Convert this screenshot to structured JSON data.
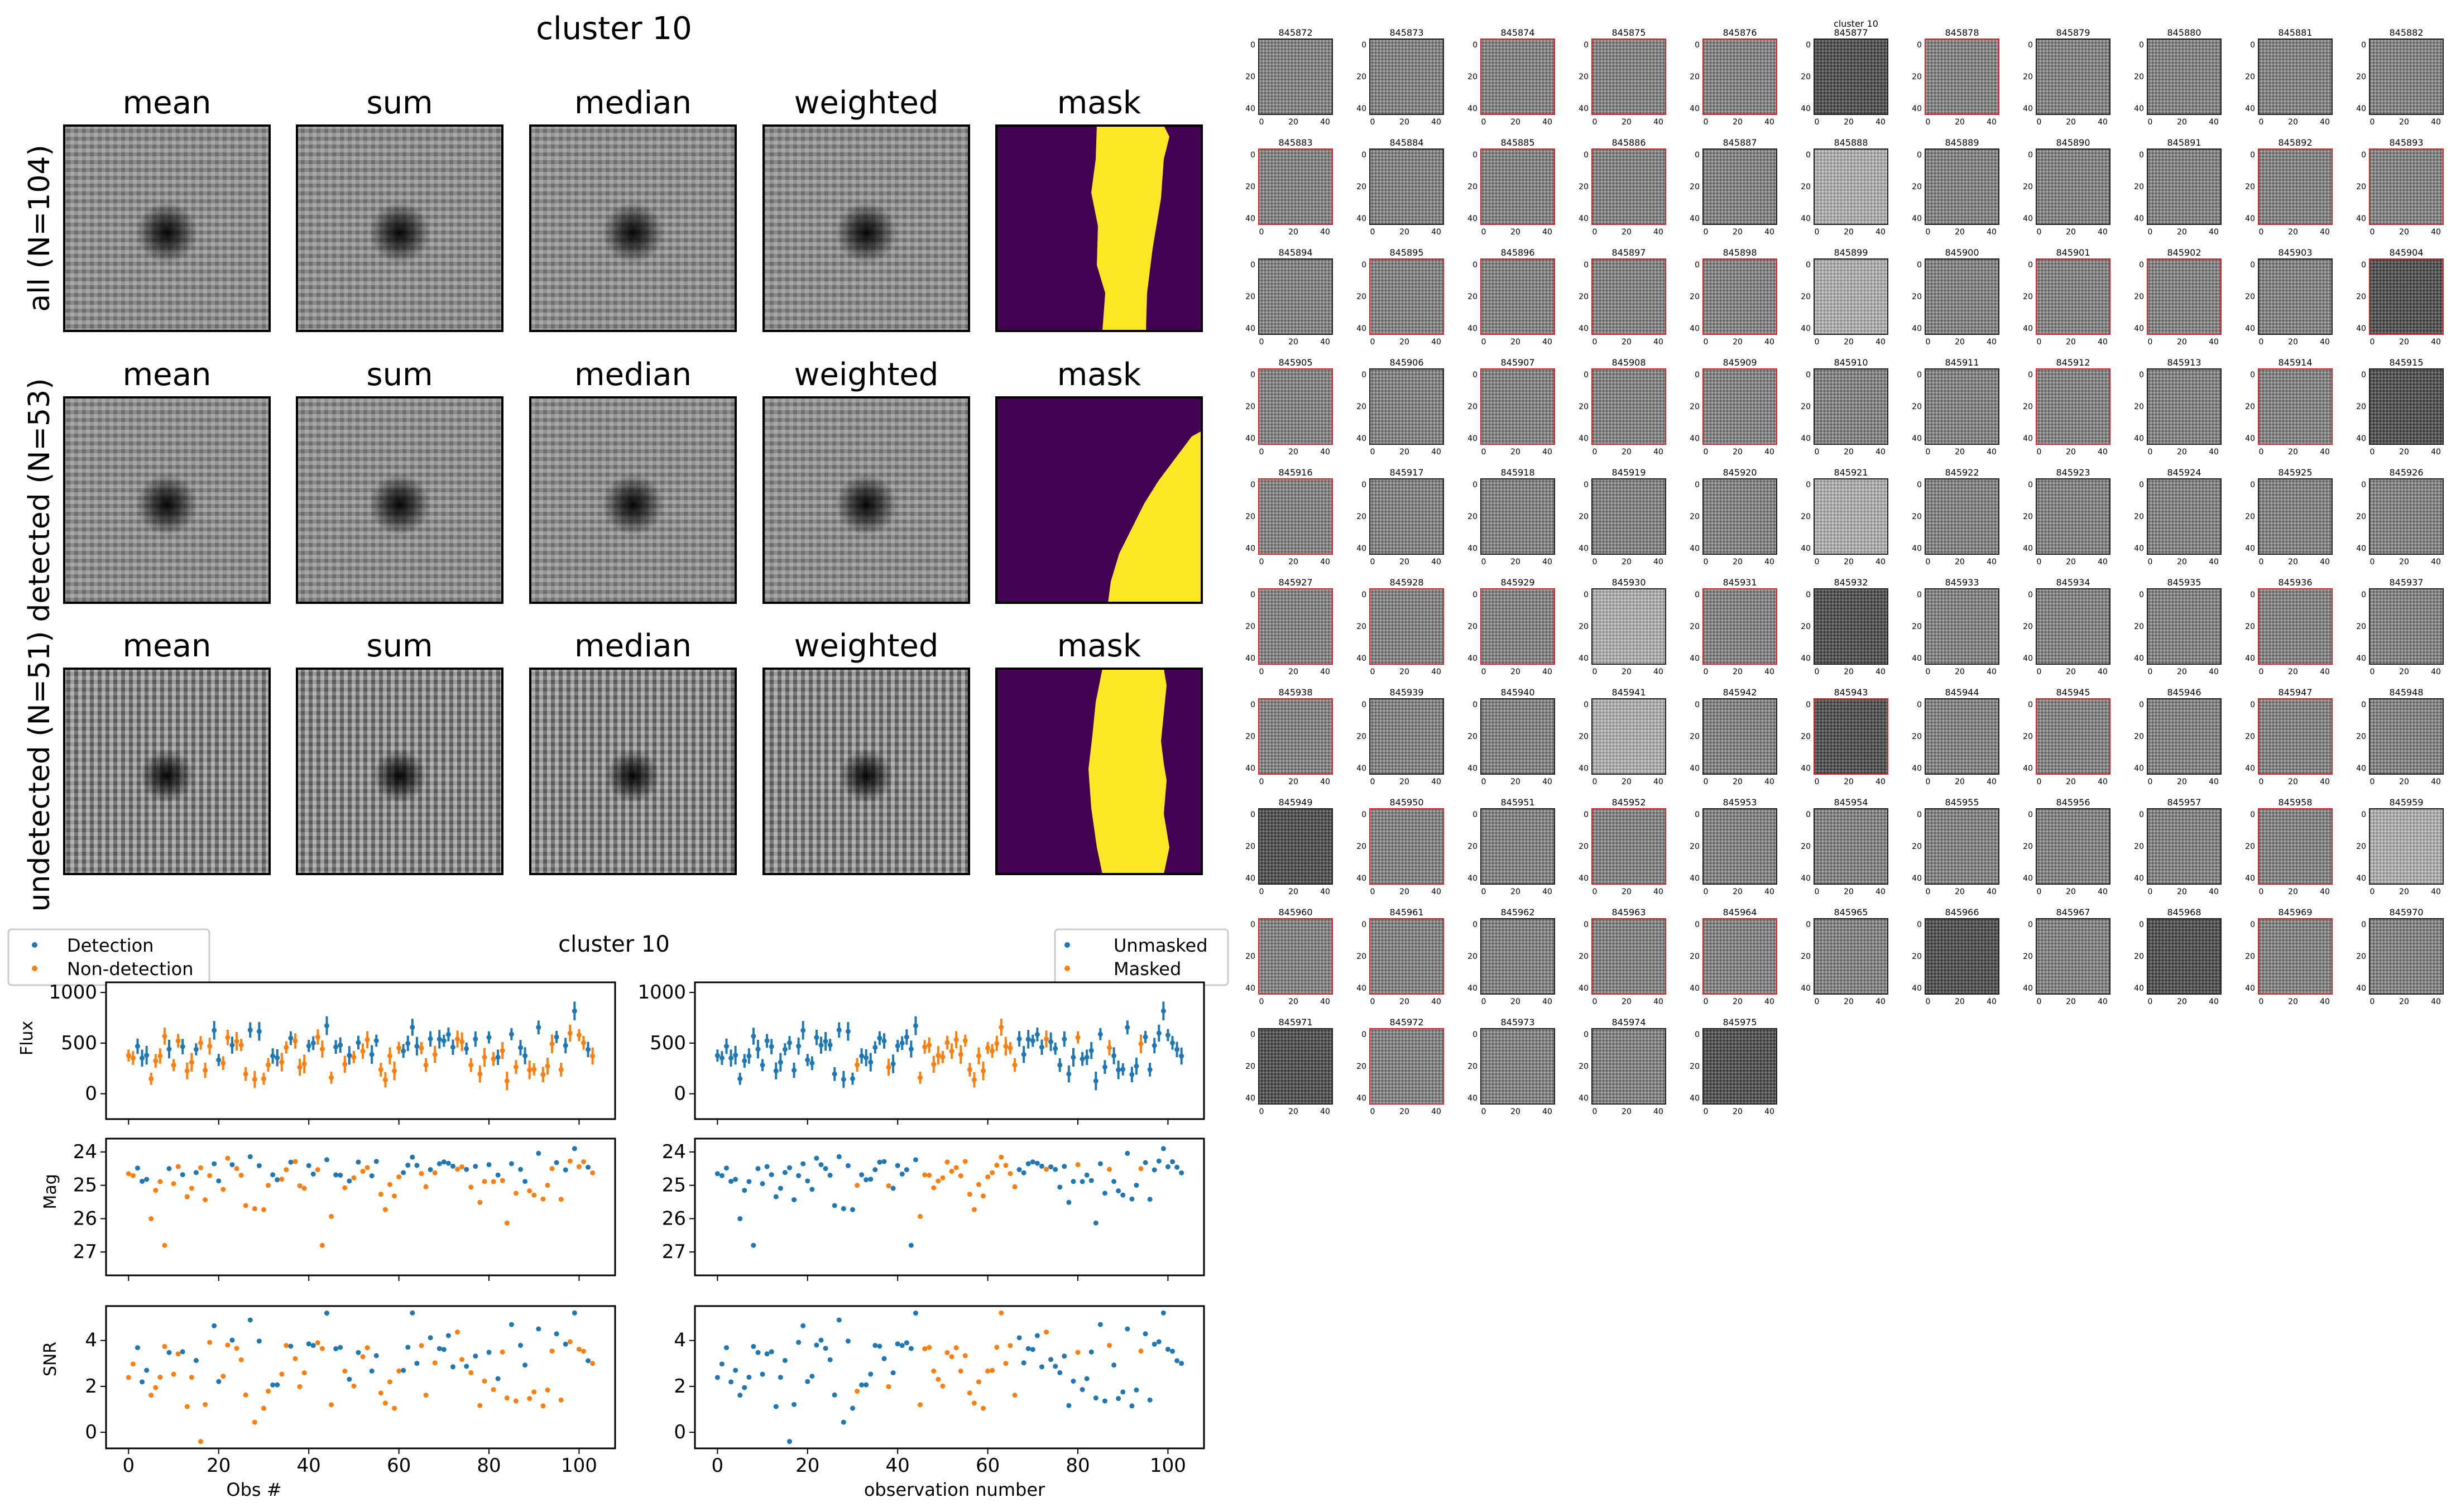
{
  "stack_figure": {
    "title": "cluster 10",
    "column_titles": [
      "mean",
      "sum",
      "median",
      "weighted",
      "mask"
    ],
    "row_labels": [
      "all (N=104)",
      "detected (N=53)",
      "undetected (N=51)"
    ],
    "mask_colors": {
      "background": "#440154",
      "foreground": "#fde725"
    }
  },
  "timeseries_figure": {
    "title": "cluster 10",
    "legend_left": [
      {
        "label": "Detection",
        "color": "#1f77b4"
      },
      {
        "label": "Non-detection",
        "color": "#ff7f0e"
      }
    ],
    "legend_right": [
      {
        "label": "Unmasked",
        "color": "#1f77b4"
      },
      {
        "label": "Masked",
        "color": "#ff7f0e"
      }
    ],
    "xlabel_left": "Obs #",
    "xlabel_right": "observation number",
    "ylabels": [
      "Flux",
      "Mag",
      "SNR"
    ]
  },
  "thumbnail_grid": {
    "title": "cluster 10",
    "start_id": 845872,
    "end_id": 845975,
    "columns": 11,
    "axis_ticks_x": [
      "0",
      "20",
      "40"
    ],
    "axis_ticks_y": [
      "0",
      "20",
      "40"
    ],
    "highlight_color": "#d62728"
  },
  "chart_data": [
    {
      "type": "scatter",
      "title": "cluster 10",
      "xlabel": "Obs #",
      "ylabel": "Flux",
      "xlim": [
        -5,
        108
      ],
      "ylim": [
        -250,
        1100
      ],
      "xticks": [
        0,
        20,
        40,
        60,
        80,
        100
      ],
      "yticks": [
        0,
        500,
        1000
      ],
      "series": [
        {
          "name": "Detection",
          "color": "#1f77b4"
        },
        {
          "name": "Non-detection",
          "color": "#ff7f0e"
        }
      ]
    },
    {
      "type": "scatter",
      "xlabel": "Obs #",
      "ylabel": "Mag",
      "xlim": [
        -5,
        108
      ],
      "ylim": [
        27.7,
        23.6
      ],
      "xticks": [
        0,
        20,
        40,
        60,
        80,
        100
      ],
      "yticks": [
        24,
        25,
        26,
        27
      ]
    },
    {
      "type": "scatter",
      "xlabel": "Obs #",
      "ylabel": "SNR",
      "xlim": [
        -5,
        108
      ],
      "ylim": [
        -0.7,
        5.5
      ],
      "xticks": [
        0,
        20,
        40,
        60,
        80,
        100
      ],
      "yticks": [
        0,
        2,
        4
      ]
    },
    {
      "type": "scatter",
      "xlabel": "observation number",
      "ylabel": "",
      "series": [
        {
          "name": "Unmasked",
          "color": "#1f77b4"
        },
        {
          "name": "Masked",
          "color": "#ff7f0e"
        }
      ]
    }
  ]
}
